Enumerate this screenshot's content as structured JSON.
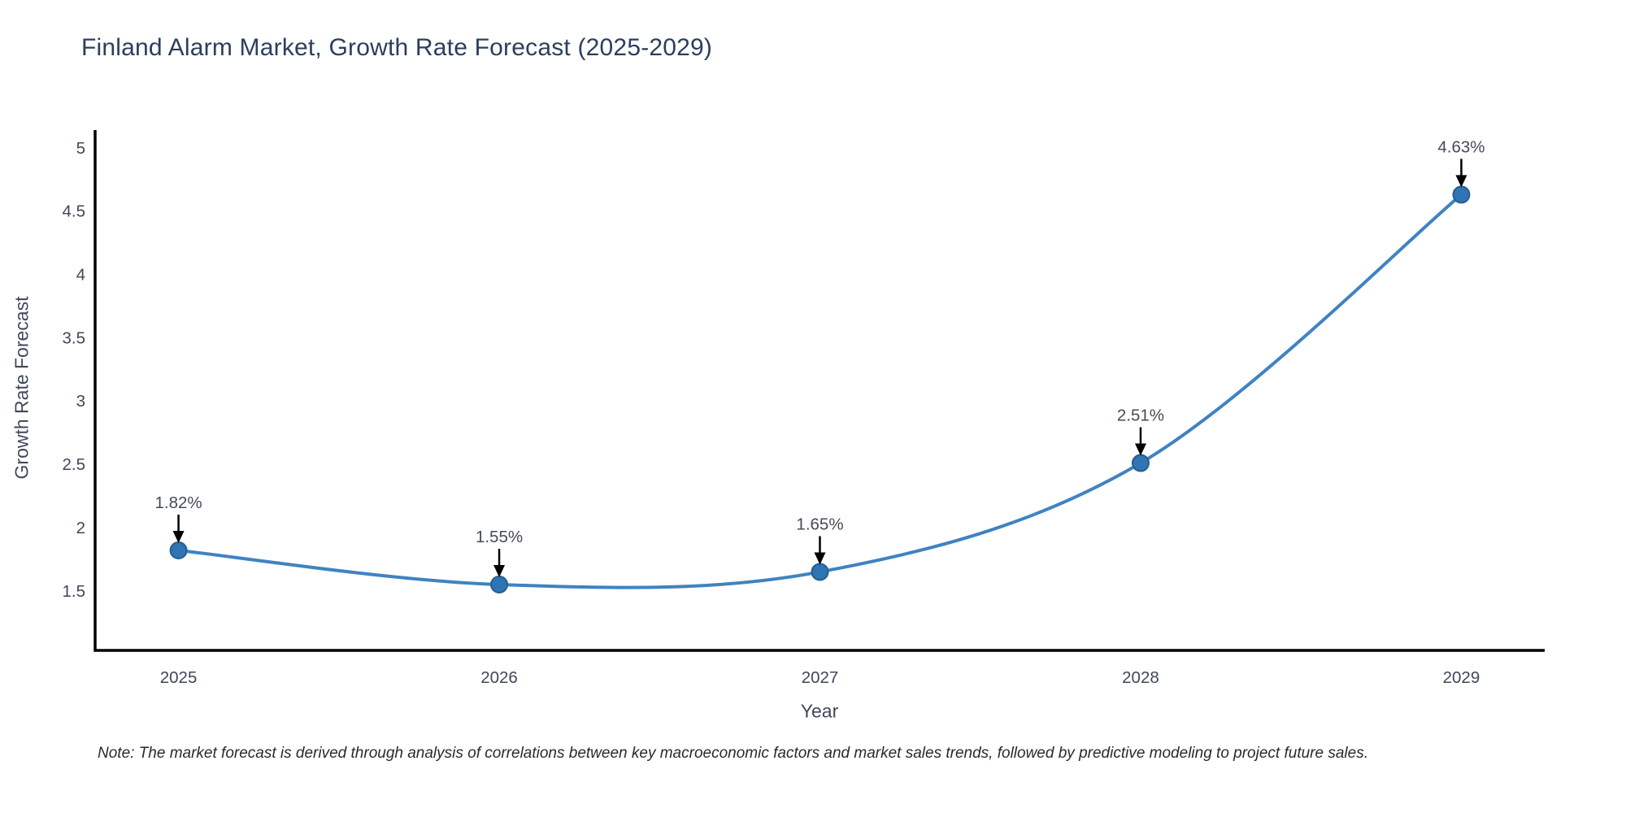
{
  "note": "Note: The market forecast is derived through analysis of correlations between key macroeconomic factors and market sales trends, followed by predictive modeling to project future sales.",
  "colors": {
    "line": "#3f83c2",
    "marker_fill": "#2f74b3",
    "marker_edge": "#265e92",
    "axis_line": "#000000",
    "title_text": "#2b3f5c",
    "tick_text": "#3f485a",
    "annotation_text": "#444c57",
    "arrow": "#000000",
    "background": "#ffffff"
  },
  "chart_data": {
    "type": "line",
    "title": "Finland Alarm Market, Growth Rate Forecast (2025-2029)",
    "xlabel": "Year",
    "ylabel": "Growth Rate Forecast",
    "x": [
      2025,
      2026,
      2027,
      2028,
      2029
    ],
    "values": [
      1.82,
      1.55,
      1.65,
      2.51,
      4.63
    ],
    "point_labels": [
      "1.82%",
      "1.55%",
      "1.65%",
      "2.51%",
      "4.63%"
    ],
    "xticks": [
      2025,
      2026,
      2027,
      2028,
      2029
    ],
    "yticks": [
      1.5,
      2,
      2.5,
      3,
      3.5,
      4,
      4.5,
      5
    ],
    "xlim": [
      2024.74,
      2029.26
    ],
    "ylim": [
      1.03,
      5.14
    ],
    "grid": false,
    "legend": "none",
    "line_shape": "spline",
    "annotations": "arrow-down-to-point"
  }
}
